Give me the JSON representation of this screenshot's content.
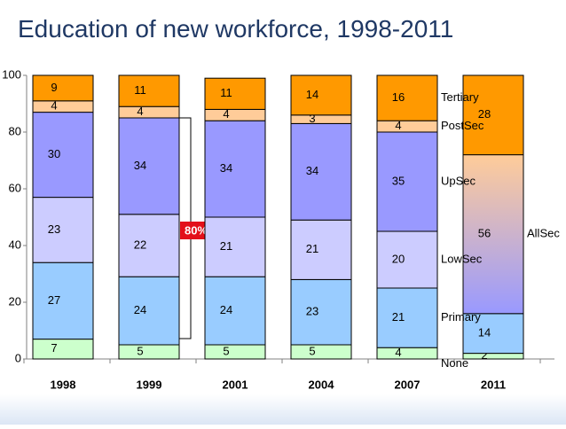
{
  "chart_data": {
    "type": "stacked-bar",
    "title": "Education of new workforce, 1998-2011",
    "categories": [
      "1998",
      "1999",
      "2001",
      "2004",
      "2007",
      "2011"
    ],
    "series": [
      {
        "name": "None",
        "color": "#ccffcc",
        "values": [
          7,
          5,
          5,
          5,
          4,
          2
        ]
      },
      {
        "name": "Primary",
        "color": "#99ccff",
        "values": [
          27,
          24,
          24,
          23,
          21,
          14
        ]
      },
      {
        "name": "LowSec",
        "color": "#ccccff",
        "values": [
          23,
          22,
          21,
          21,
          20,
          null
        ]
      },
      {
        "name": "UpSec",
        "color": "#9999ff",
        "values": [
          30,
          34,
          34,
          34,
          35,
          null
        ]
      },
      {
        "name": "AllSec",
        "color": [
          "#ffcc99",
          "#9999ff"
        ],
        "values": [
          null,
          null,
          null,
          null,
          null,
          56
        ]
      },
      {
        "name": "PostSec",
        "color": "#ffcc99",
        "values": [
          4,
          4,
          4,
          3,
          4,
          null
        ]
      },
      {
        "name": "Tertiary",
        "color": "#ff9900",
        "values": [
          9,
          11,
          11,
          14,
          16,
          28
        ]
      }
    ],
    "ylim": [
      0,
      100
    ],
    "yticks": [
      0,
      20,
      40,
      60,
      80,
      100
    ],
    "annotation": "80%"
  }
}
